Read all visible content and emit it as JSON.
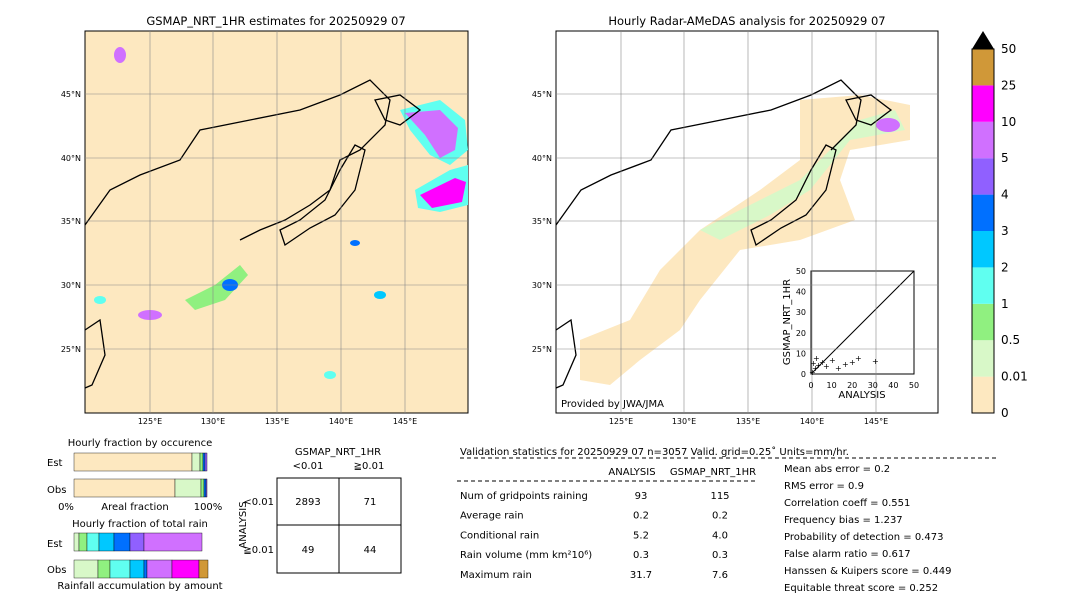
{
  "left_map": {
    "title": "GSMAP_NRT_1HR estimates for 20250929 07"
  },
  "right_map": {
    "title": "Hourly Radar-AMeDAS analysis for 20250929 07",
    "credit": "Provided by JWA/JMA",
    "inset": {
      "xlabel": "ANALYSIS",
      "ylabel": "GSMAP_NRT_1HR",
      "ticks": [
        "0",
        "10",
        "20",
        "30",
        "40",
        "50"
      ]
    }
  },
  "lon_labels": [
    "125°E",
    "130°E",
    "135°E",
    "140°E",
    "145°E"
  ],
  "lat_labels": [
    "45°N",
    "40°N",
    "35°N",
    "30°N",
    "25°N"
  ],
  "colorbar": {
    "labels": [
      "0",
      "0.01",
      "0.5",
      "1",
      "2",
      "3",
      "4",
      "5",
      "10",
      "25",
      "50"
    ]
  },
  "occurrence": {
    "title": "Hourly fraction by occurence",
    "rows": [
      "Est",
      "Obs"
    ],
    "axis": [
      "0%",
      "Areal fraction",
      "100%"
    ]
  },
  "amount": {
    "title": "Hourly fraction of total rain",
    "rows": [
      "Est",
      "Obs"
    ],
    "footer": "Rainfall accumulation by amount"
  },
  "contingency": {
    "title": "GSMAP_NRT_1HR",
    "cols": [
      "<0.01",
      "≧0.01"
    ],
    "side": "ANALYSIS",
    "rows": [
      {
        "label": "<0.01",
        "cells": [
          "2893",
          "71"
        ]
      },
      {
        "label": "≧0.01",
        "cells": [
          "49",
          "44"
        ]
      }
    ]
  },
  "validation": {
    "header": "Validation statistics for 20250929 07  n=3057 Valid. grid=0.25˚ Units=mm/hr.",
    "columns": [
      "ANALYSIS",
      "GSMAP_NRT_1HR"
    ],
    "rows": [
      {
        "label": "Num of gridpoints raining",
        "values": [
          "93",
          "115"
        ]
      },
      {
        "label": "Average rain",
        "values": [
          "0.2",
          "0.2"
        ]
      },
      {
        "label": "Conditional rain",
        "values": [
          "5.2",
          "4.0"
        ]
      },
      {
        "label": "Rain volume (mm km²10⁶)",
        "values": [
          "0.3",
          "0.3"
        ]
      },
      {
        "label": "Maximum rain",
        "values": [
          "31.7",
          "7.6"
        ]
      }
    ],
    "scores": [
      "Mean abs error =    0.2",
      "RMS error =    0.9",
      "Correlation coeff =  0.551",
      "Frequency bias =  1.237",
      "Probability of detection =  0.473",
      "False alarm ratio =  0.617",
      "Hanssen & Kuipers score =  0.449",
      "Equitable threat score =  0.252"
    ]
  }
}
